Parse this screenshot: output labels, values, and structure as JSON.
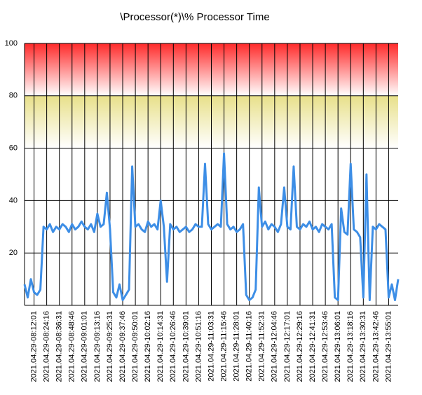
{
  "chart_data": {
    "type": "line",
    "title": "\\Processor(*)\\% Processor Time",
    "categories": [
      null,
      null,
      null,
      "2021.04.29-08:12:01",
      null,
      null,
      null,
      "2021.04.29-08:24:16",
      null,
      null,
      null,
      "2021.04.29-08:36:31",
      null,
      null,
      null,
      "2021.04.29-08:48:46",
      null,
      null,
      null,
      "2021.04.29-09:01:01",
      null,
      null,
      null,
      "2021.04.29-09:13:16",
      null,
      null,
      null,
      "2021.04.29-09:25:31",
      null,
      null,
      null,
      "2021.04.29-09:37:46",
      null,
      null,
      null,
      "2021.04.29-09:50:01",
      null,
      null,
      null,
      "2021.04.29-10:02:16",
      null,
      null,
      null,
      "2021.04.29-10:14:31",
      null,
      null,
      null,
      "2021.04.29-10:26:46",
      null,
      null,
      null,
      "2021.04.29-10:39:01",
      null,
      null,
      null,
      "2021.04.29-10:51:16",
      null,
      null,
      null,
      "2021.04.29-11:03:31",
      null,
      null,
      null,
      "2021.04.29-11:15:46",
      null,
      null,
      null,
      "2021.04.29-11:28:01",
      null,
      null,
      null,
      "2021.04.29-11:40:16",
      null,
      null,
      null,
      "2021.04.29-11:52:31",
      null,
      null,
      null,
      "2021.04.29-12:04:46",
      null,
      null,
      null,
      "2021.04.29-12:17:01",
      null,
      null,
      null,
      "2021.04.29-12:29:16",
      null,
      null,
      null,
      "2021.04.29-12:41:31",
      null,
      null,
      null,
      "2021.04.29-12:53:46",
      null,
      null,
      null,
      "2021.04.29-13:06:01",
      null,
      null,
      null,
      "2021.04.29-13:18:16",
      null,
      null,
      null,
      "2021.04.29-13:30:31",
      null,
      null,
      null,
      "2021.04.29-13:42:46",
      null,
      null,
      null,
      "2021.04.29-13:55:01",
      null,
      null,
      null
    ],
    "values": [
      8,
      3,
      10,
      5,
      4,
      6,
      30,
      29,
      31,
      28,
      30,
      29,
      31,
      30,
      28,
      31,
      29,
      30,
      32,
      30,
      29,
      31,
      28,
      35,
      30,
      31,
      43,
      29,
      5,
      3,
      8,
      2,
      4,
      6,
      53,
      30,
      31,
      29,
      28,
      32,
      30,
      31,
      29,
      40,
      30,
      9,
      31,
      29,
      30,
      28,
      29,
      30,
      28,
      29,
      31,
      30,
      30,
      54,
      31,
      29,
      30,
      31,
      30,
      58,
      31,
      29,
      30,
      28,
      29,
      31,
      4,
      2,
      3,
      6,
      45,
      30,
      32,
      29,
      31,
      30,
      28,
      31,
      45,
      30,
      29,
      53,
      30,
      29,
      31,
      30,
      32,
      29,
      30,
      28,
      31,
      30,
      29,
      31,
      3,
      2,
      37,
      28,
      27,
      54,
      29,
      28,
      26,
      3,
      50,
      2,
      30,
      29,
      31,
      30,
      29,
      3,
      8,
      2,
      10
    ],
    "color": "#3d8ee6",
    "ylim": [
      0,
      100
    ],
    "yticks": [
      20,
      40,
      60,
      80,
      100
    ],
    "grid": true,
    "bands": [
      {
        "from": 80,
        "to": 100,
        "color": "#ff2a2a"
      },
      {
        "from": 60,
        "to": 80,
        "color": "#e8e08a"
      }
    ]
  }
}
